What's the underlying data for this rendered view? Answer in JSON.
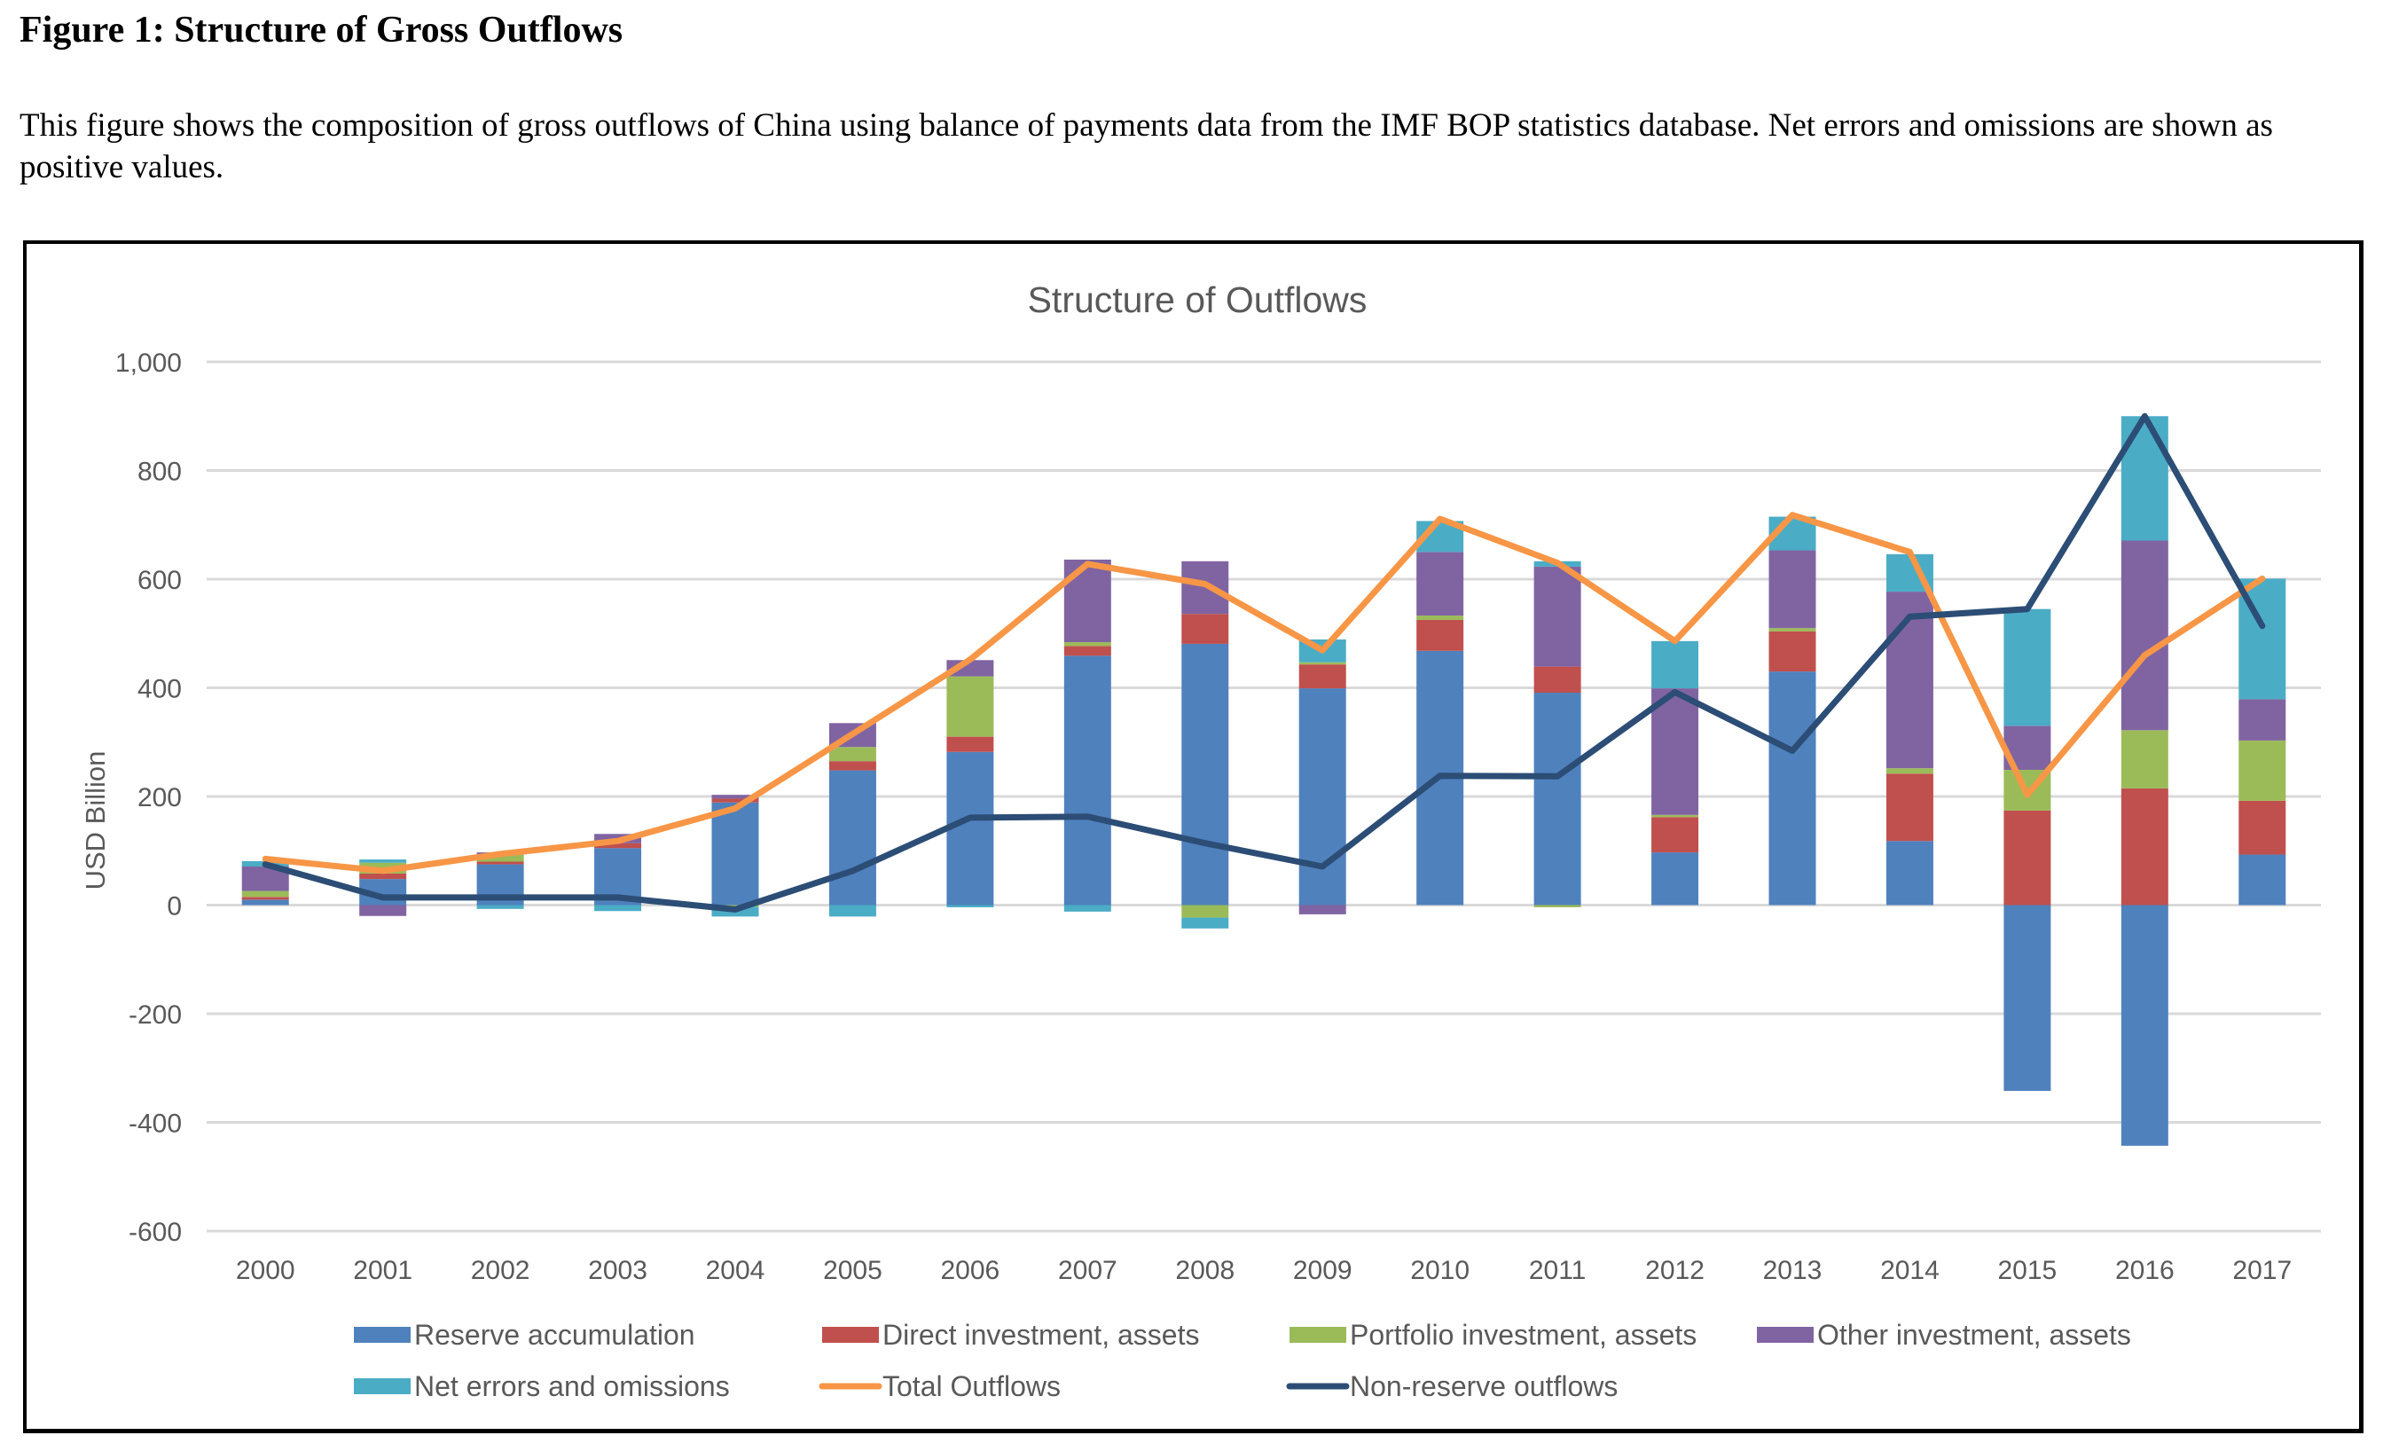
{
  "document": {
    "figure_title": "Figure 1: Structure of Gross Outflows",
    "caption": "This figure shows the composition of gross outflows of China using balance of payments data from the IMF BOP statistics database. Net errors and omissions are shown as positive values."
  },
  "chart_data": {
    "type": "bar",
    "subtype": "stacked-bar-with-lines",
    "title": "Structure of Outflows",
    "xlabel": "",
    "ylabel": "USD Billion",
    "ylim": [
      -600,
      1000
    ],
    "yticks": [
      1000,
      800,
      600,
      400,
      200,
      0,
      -200,
      -400,
      -600
    ],
    "ytick_labels": [
      "1,000",
      "800",
      "600",
      "400",
      "200",
      "0",
      "-200",
      "-400",
      "-600"
    ],
    "grid": true,
    "legend_position": "bottom",
    "categories": [
      "2000",
      "2001",
      "2002",
      "2003",
      "2004",
      "2005",
      "2006",
      "2007",
      "2008",
      "2009",
      "2010",
      "2011",
      "2012",
      "2013",
      "2014",
      "2015",
      "2016",
      "2017"
    ],
    "series": [
      {
        "name": "Reserve accumulation",
        "kind": "bar",
        "color": "#4F81BD",
        "values": [
          10,
          48,
          75,
          105,
          189,
          248,
          282,
          459,
          481,
          399,
          468,
          391,
          97,
          430,
          118,
          -342,
          -443,
          93
        ]
      },
      {
        "name": "Direct investment, assets",
        "kind": "bar",
        "color": "#C0504D",
        "values": [
          5,
          10,
          5,
          9,
          7,
          17,
          28,
          18,
          55,
          44,
          57,
          48,
          65,
          74,
          124,
          174,
          215,
          99
        ]
      },
      {
        "name": "Portfolio investment, assets",
        "kind": "bar",
        "color": "#9BBB59",
        "values": [
          11,
          20,
          13,
          0,
          -3,
          26,
          111,
          7,
          -23,
          4,
          8,
          -4,
          4,
          6,
          10,
          75,
          107,
          111
        ]
      },
      {
        "name": "Other investment, assets",
        "kind": "bar",
        "color": "#8064A2",
        "values": [
          45,
          -20,
          4,
          17,
          7,
          44,
          30,
          152,
          97,
          -17,
          117,
          184,
          233,
          143,
          325,
          81,
          349,
          76
        ]
      },
      {
        "name": "Net errors and omissions",
        "kind": "bar",
        "color": "#4BACC6",
        "values": [
          10,
          6,
          -7,
          -11,
          -18,
          -21,
          -4,
          -12,
          -20,
          42,
          57,
          10,
          87,
          62,
          69,
          215,
          229,
          222
        ]
      },
      {
        "name": "Total Outflows",
        "kind": "line",
        "color": "#F79646",
        "values": [
          85,
          63,
          94,
          118,
          178,
          315,
          452,
          628,
          591,
          469,
          711,
          630,
          486,
          718,
          650,
          203,
          460,
          601
        ]
      },
      {
        "name": "Non-reserve outflows",
        "kind": "line",
        "color": "#2C4D75",
        "values": [
          75,
          14,
          14,
          14,
          -8,
          63,
          161,
          163,
          114,
          71,
          238,
          237,
          392,
          284,
          531,
          545,
          900,
          514
        ]
      }
    ]
  }
}
